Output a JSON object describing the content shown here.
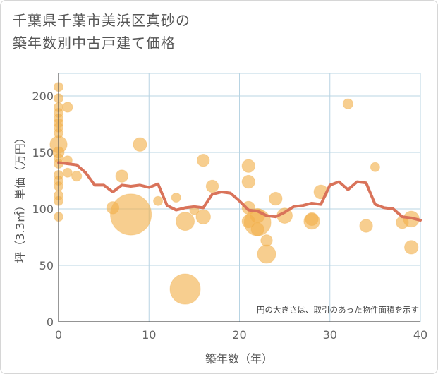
{
  "chart_data": {
    "type": "scatter",
    "title_lines": [
      "千葉県千葉市美浜区真砂の",
      "築年数別中古戸建て価格"
    ],
    "xlabel": "築年数（年）",
    "ylabel": "坪（3.3㎡）単価（万円）",
    "xlim": [
      0,
      40
    ],
    "ylim": [
      0,
      220
    ],
    "x_ticks": [
      0,
      10,
      20,
      30,
      40
    ],
    "y_ticks": [
      0,
      50,
      100,
      150,
      200
    ],
    "grid": true,
    "annotation": "円の大きさは、取引のあった物件面積を示す",
    "colors": {
      "bubble": "#f2b04b",
      "line": "#d9735a",
      "grid": "#b8d4e3",
      "axis": "#555555"
    },
    "bubbles": [
      {
        "x": 0,
        "y": 208,
        "size": 1.0
      },
      {
        "x": 0,
        "y": 198,
        "size": 1.0
      },
      {
        "x": 0,
        "y": 190,
        "size": 1.0
      },
      {
        "x": 0,
        "y": 185,
        "size": 1.0
      },
      {
        "x": 0,
        "y": 180,
        "size": 1.0
      },
      {
        "x": 0,
        "y": 176,
        "size": 1.0
      },
      {
        "x": 0,
        "y": 172,
        "size": 1.0
      },
      {
        "x": 0,
        "y": 167,
        "size": 1.0
      },
      {
        "x": 0,
        "y": 157,
        "size": 3.5
      },
      {
        "x": 0,
        "y": 150,
        "size": 1.5
      },
      {
        "x": 0,
        "y": 145,
        "size": 1.0
      },
      {
        "x": 0,
        "y": 140,
        "size": 1.0
      },
      {
        "x": 0,
        "y": 130,
        "size": 1.0
      },
      {
        "x": 0,
        "y": 125,
        "size": 1.0
      },
      {
        "x": 0,
        "y": 120,
        "size": 1.0
      },
      {
        "x": 0,
        "y": 112,
        "size": 1.0
      },
      {
        "x": 0,
        "y": 107,
        "size": 1.0
      },
      {
        "x": 0,
        "y": 93,
        "size": 1.0
      },
      {
        "x": 1,
        "y": 190,
        "size": 1.2
      },
      {
        "x": 1,
        "y": 143,
        "size": 1.0
      },
      {
        "x": 1,
        "y": 132,
        "size": 1.0
      },
      {
        "x": 2,
        "y": 129,
        "size": 1.2
      },
      {
        "x": 6,
        "y": 101,
        "size": 1.8
      },
      {
        "x": 7,
        "y": 129,
        "size": 1.8
      },
      {
        "x": 8,
        "y": 95,
        "size": 20.0
      },
      {
        "x": 9,
        "y": 157,
        "size": 2.2
      },
      {
        "x": 11,
        "y": 107,
        "size": 1.0
      },
      {
        "x": 13,
        "y": 110,
        "size": 1.0
      },
      {
        "x": 14,
        "y": 89,
        "size": 4.0
      },
      {
        "x": 14,
        "y": 29,
        "size": 11.0
      },
      {
        "x": 15,
        "y": 99,
        "size": 1.0
      },
      {
        "x": 16,
        "y": 143,
        "size": 1.8
      },
      {
        "x": 16,
        "y": 93,
        "size": 2.5
      },
      {
        "x": 17,
        "y": 120,
        "size": 1.8
      },
      {
        "x": 21,
        "y": 138,
        "size": 2.0
      },
      {
        "x": 21,
        "y": 124,
        "size": 2.0
      },
      {
        "x": 21,
        "y": 101,
        "size": 2.0
      },
      {
        "x": 21,
        "y": 89,
        "size": 2.0
      },
      {
        "x": 22,
        "y": 94,
        "size": 2.5
      },
      {
        "x": 22,
        "y": 88,
        "size": 8.5
      },
      {
        "x": 22,
        "y": 82,
        "size": 2.0
      },
      {
        "x": 23,
        "y": 72,
        "size": 1.6
      },
      {
        "x": 23,
        "y": 60,
        "size": 4.0
      },
      {
        "x": 24,
        "y": 109,
        "size": 2.0
      },
      {
        "x": 25,
        "y": 94,
        "size": 2.8
      },
      {
        "x": 28,
        "y": 91,
        "size": 2.0
      },
      {
        "x": 28,
        "y": 89,
        "size": 3.0
      },
      {
        "x": 29,
        "y": 115,
        "size": 2.3
      },
      {
        "x": 32,
        "y": 193,
        "size": 1.2
      },
      {
        "x": 34,
        "y": 85,
        "size": 2.0
      },
      {
        "x": 35,
        "y": 137,
        "size": 1.0
      },
      {
        "x": 38,
        "y": 88,
        "size": 1.8
      },
      {
        "x": 39,
        "y": 91,
        "size": 3.0
      },
      {
        "x": 39,
        "y": 66,
        "size": 2.2
      }
    ],
    "trend_line": {
      "x": [
        0,
        1,
        2,
        3,
        4,
        5,
        6,
        7,
        8,
        9,
        10,
        11,
        12,
        13,
        14,
        15,
        16,
        17,
        18,
        19,
        20,
        21,
        22,
        23,
        24,
        25,
        26,
        27,
        28,
        29,
        30,
        31,
        32,
        33,
        34,
        35,
        36,
        37,
        38,
        39,
        40
      ],
      "y": [
        141,
        140,
        139,
        132,
        121,
        121,
        115,
        121,
        120,
        121,
        119,
        122,
        103,
        99,
        101,
        102,
        101,
        113,
        115,
        114,
        107,
        99,
        98,
        94,
        93,
        97,
        102,
        103,
        105,
        104,
        121,
        124,
        117,
        124,
        123,
        104,
        101,
        100,
        93,
        92,
        90
      ]
    }
  }
}
